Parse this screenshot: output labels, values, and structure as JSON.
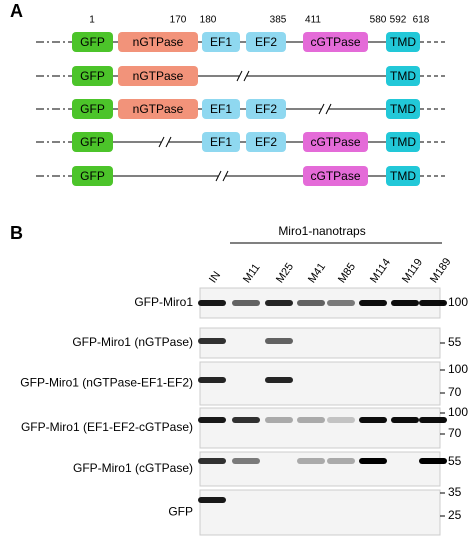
{
  "panel_a": {
    "label": "A",
    "positions": [
      "1",
      "170",
      "180",
      "385",
      "411",
      "580",
      "592",
      "618"
    ],
    "constructs": [
      [
        "GFP",
        "nGTPase",
        "EF1",
        "EF2",
        "cGTPase",
        "TMD"
      ],
      [
        "GFP",
        "nGTPase",
        null,
        null,
        null,
        "TMD"
      ],
      [
        "GFP",
        "nGTPase",
        "EF1",
        "EF2",
        null,
        "TMD"
      ],
      [
        "GFP",
        null,
        "EF1",
        "EF2",
        "cGTPase",
        "TMD"
      ],
      [
        "GFP",
        null,
        null,
        null,
        "cGTPase",
        "TMD"
      ]
    ]
  },
  "panel_b": {
    "label": "B",
    "group_label": "Miro1-nanotraps",
    "lanes": [
      "IN",
      "M11",
      "M25",
      "M41",
      "M85",
      "M114",
      "M119",
      "M189"
    ],
    "blots": [
      {
        "label": "GFP-Miro1",
        "markers": [
          "100"
        ]
      },
      {
        "label": "GFP-Miro1 (nGTPase)",
        "markers": [
          "55"
        ]
      },
      {
        "label": "GFP-Miro1 (nGTPase-EF1-EF2)",
        "markers": [
          "100",
          "70"
        ]
      },
      {
        "label": "GFP-Miro1 (EF1-EF2-cGTPase)",
        "markers": [
          "100",
          "70"
        ]
      },
      {
        "label": "GFP-Miro1 (cGTPase)",
        "markers": [
          "55"
        ]
      },
      {
        "label": "GFP",
        "markers": [
          "35",
          "25"
        ]
      }
    ]
  }
}
